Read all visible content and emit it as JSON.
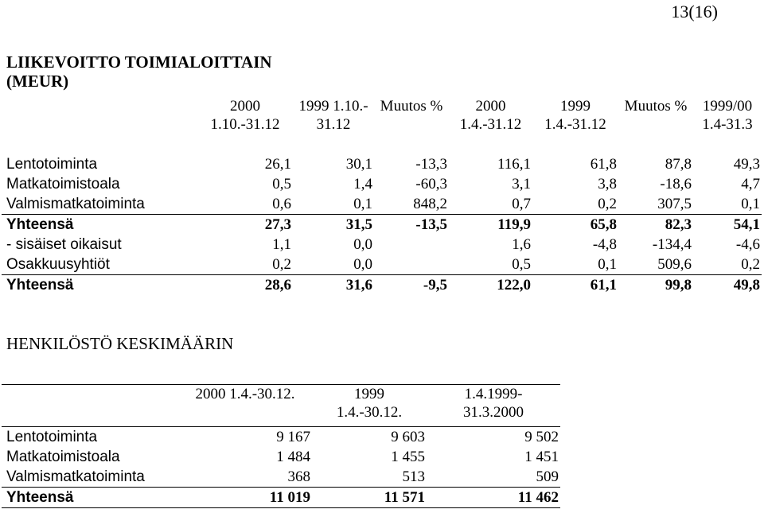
{
  "page_number": "13(16)",
  "section1": {
    "title": "LIIKEVOITTO TOIMIALOITTAIN (MEUR)",
    "headers": [
      "",
      "2000 1.10.-31.12",
      "1999 1.10.- 31.12",
      "Muutos %",
      "2000 1.4.-31.12",
      "1999 1.4.-31.12",
      "Muutos %",
      "1999/00 1.4-31.3"
    ],
    "rows": [
      {
        "label": "Lentotoiminta",
        "values": [
          "26,1",
          "30,1",
          "-13,3",
          "116,1",
          "61,8",
          "87,8",
          "49,3"
        ]
      },
      {
        "label": "Matkatoimistoala",
        "values": [
          "0,5",
          "1,4",
          "-60,3",
          "3,1",
          "3,8",
          "-18,6",
          "4,7"
        ]
      },
      {
        "label": "Valmismatkatoiminta",
        "values": [
          "0,6",
          "0,1",
          "848,2",
          "0,7",
          "0,2",
          "307,5",
          "0,1"
        ]
      },
      {
        "label": "Yhteensä",
        "values": [
          "27,3",
          "31,5",
          "-13,5",
          "119,9",
          "65,8",
          "82,3",
          "54,1"
        ]
      },
      {
        "label": "- sisäiset oikaisut",
        "values": [
          "1,1",
          "0,0",
          "",
          "1,6",
          "-4,8",
          "-134,4",
          "-4,6"
        ]
      },
      {
        "label": "Osakkuusyhtiöt",
        "values": [
          "0,2",
          "0,0",
          "",
          "0,5",
          "0,1",
          "509,6",
          "0,2"
        ]
      },
      {
        "label": "Yhteensä",
        "values": [
          "28,6",
          "31,6",
          "-9,5",
          "122,0",
          "61,1",
          "99,8",
          "49,8"
        ]
      }
    ]
  },
  "section2": {
    "title": "HENKILÖSTÖ KESKIMÄÄRIN",
    "headers": [
      "",
      "2000 1.4.-30.12.",
      "1999 1.4.-30.12.",
      "1.4.1999- 31.3.2000"
    ],
    "rows": [
      {
        "label": "Lentotoiminta",
        "values": [
          "9 167",
          "9 603",
          "9 502"
        ]
      },
      {
        "label": "Matkatoimistoala",
        "values": [
          "1 484",
          "1 455",
          "1 451"
        ]
      },
      {
        "label": "Valmismatkatoiminta",
        "values": [
          "368",
          "513",
          "509"
        ]
      },
      {
        "label": "Yhteensä",
        "values": [
          "11 019",
          "11 571",
          "11 462"
        ]
      }
    ]
  }
}
